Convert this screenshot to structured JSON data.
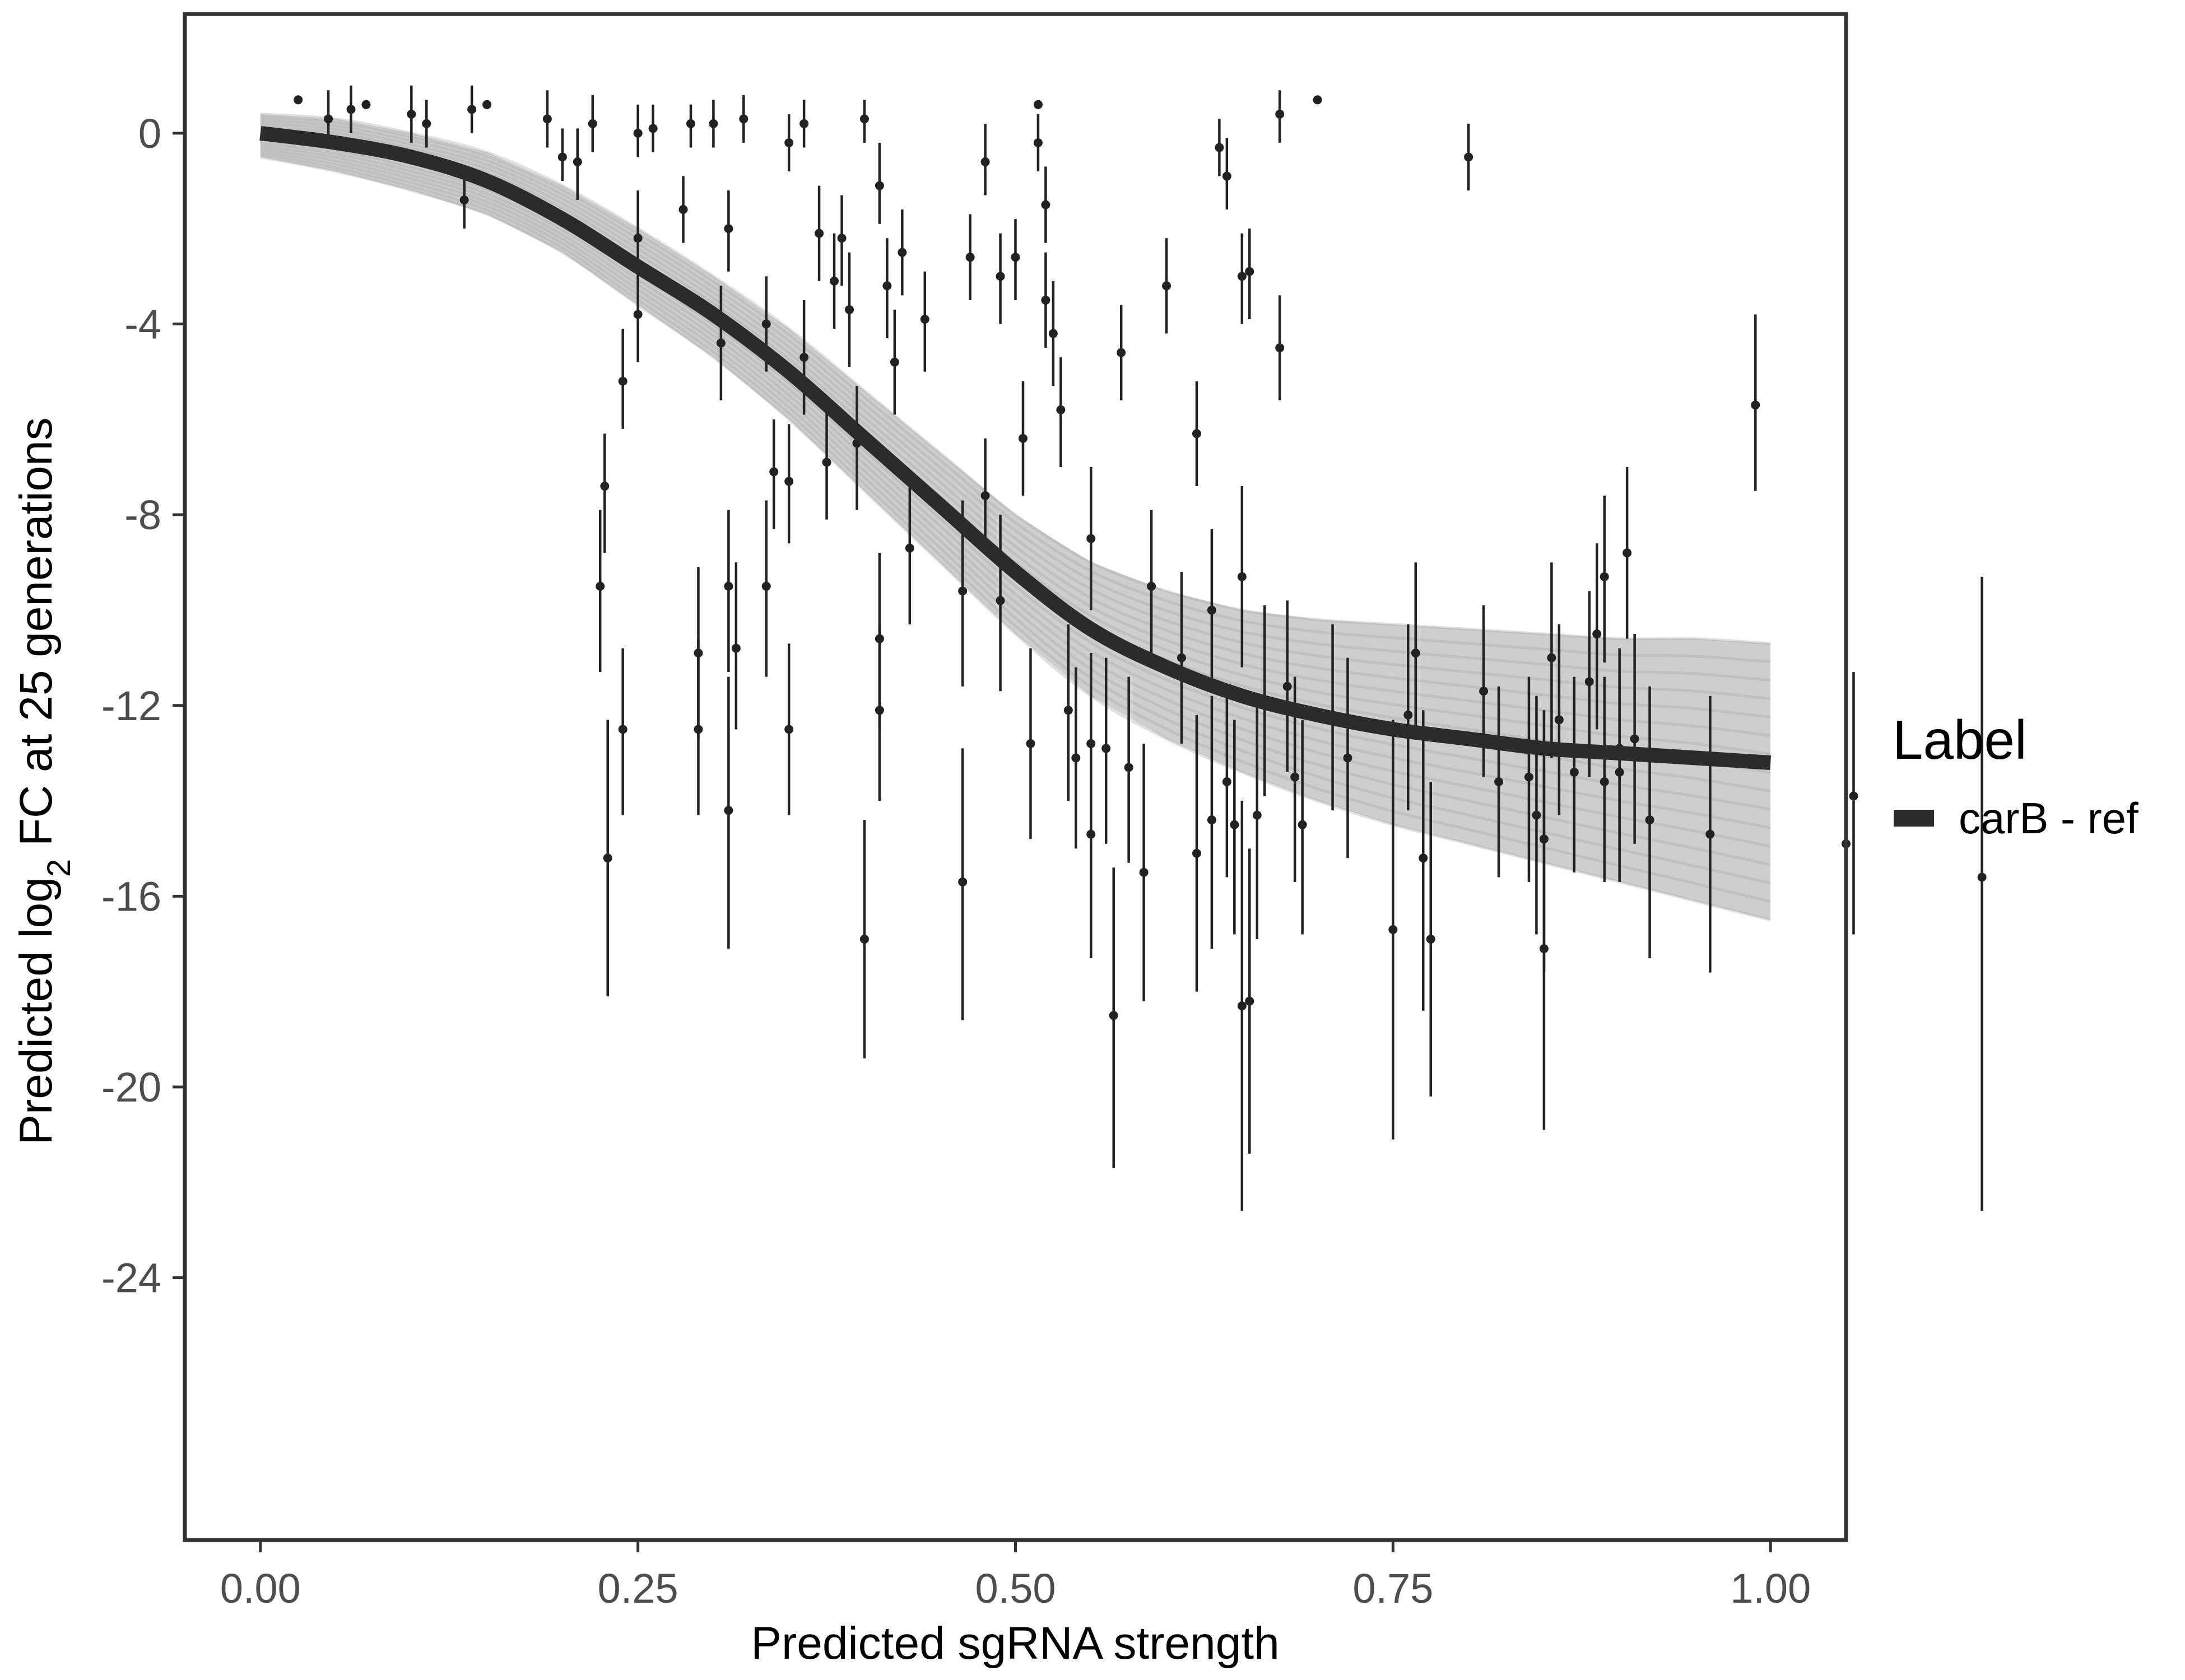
{
  "chart_data": {
    "type": "scatter",
    "xlabel": "Predicted sgRNA strength",
    "ylabel": {
      "prefix": "Predicted  log",
      "subscript": "2",
      "suffix": " FC at 25 generations"
    },
    "xlim": [
      -0.05,
      1.05
    ],
    "ylim": [
      -29.5,
      2.5
    ],
    "x_ticks": [
      0.0,
      0.25,
      0.5,
      0.75,
      1.0
    ],
    "x_tick_labels": [
      "0.00",
      "0.25",
      "0.50",
      "0.75",
      "1.00"
    ],
    "y_ticks": [
      0,
      -4,
      -8,
      -12,
      -16,
      -20,
      -24
    ],
    "y_tick_labels": [
      "0",
      "-4",
      "-8",
      "-12",
      "-16",
      "-20",
      "-24"
    ],
    "grid": false,
    "legend": {
      "title": "Label",
      "placement": "right",
      "entries": [
        "carB - ref"
      ]
    },
    "colors": {
      "points": "#222222",
      "fit": "#2b2b2b",
      "posterior": "#a6a6a6",
      "frame": "#333333"
    },
    "fit_curve": {
      "name": "carB - ref",
      "x": [
        0.0,
        0.05,
        0.1,
        0.15,
        0.2,
        0.25,
        0.3,
        0.35,
        0.4,
        0.45,
        0.5,
        0.55,
        0.6,
        0.65,
        0.7,
        0.75,
        0.8,
        0.85,
        0.9,
        0.95,
        1.0
      ],
      "y": [
        0.0,
        -0.2,
        -0.5,
        -1.0,
        -1.8,
        -2.8,
        -3.8,
        -5.0,
        -6.4,
        -7.8,
        -9.2,
        -10.4,
        -11.2,
        -11.8,
        -12.2,
        -12.5,
        -12.7,
        -12.9,
        -13.0,
        -13.1,
        -13.2
      ],
      "band_upper": [
        0.4,
        0.3,
        0.0,
        -0.4,
        -1.1,
        -2.0,
        -3.0,
        -4.1,
        -5.4,
        -6.7,
        -8.0,
        -9.0,
        -9.6,
        -10.0,
        -10.2,
        -10.3,
        -10.4,
        -10.5,
        -10.6,
        -10.6,
        -10.7
      ],
      "band_lower": [
        -0.5,
        -0.8,
        -1.2,
        -1.7,
        -2.5,
        -3.6,
        -4.7,
        -6.0,
        -7.5,
        -9.0,
        -10.5,
        -11.8,
        -12.7,
        -13.4,
        -14.0,
        -14.5,
        -14.9,
        -15.3,
        -15.7,
        -16.1,
        -16.5
      ]
    },
    "points": [
      {
        "x": 0.025,
        "y": 0.7
      },
      {
        "x": 0.045,
        "y": 0.3,
        "lo": -0.3,
        "hi": 0.9
      },
      {
        "x": 0.06,
        "y": 0.5,
        "lo": 0.0,
        "hi": 1.0
      },
      {
        "x": 0.07,
        "y": 0.6
      },
      {
        "x": 0.1,
        "y": 0.4,
        "lo": -0.2,
        "hi": 1.0
      },
      {
        "x": 0.11,
        "y": 0.2,
        "lo": -0.3,
        "hi": 0.7
      },
      {
        "x": 0.135,
        "y": -1.4,
        "lo": -2.0,
        "hi": -0.7
      },
      {
        "x": 0.14,
        "y": 0.5,
        "lo": 0.0,
        "hi": 1.0
      },
      {
        "x": 0.15,
        "y": 0.6
      },
      {
        "x": 0.19,
        "y": 0.3,
        "lo": -0.3,
        "hi": 0.9
      },
      {
        "x": 0.2,
        "y": -0.5,
        "lo": -1.0,
        "hi": 0.1
      },
      {
        "x": 0.21,
        "y": -0.6,
        "lo": -1.4,
        "hi": 0.1
      },
      {
        "x": 0.22,
        "y": 0.2,
        "lo": -0.4,
        "hi": 0.8
      },
      {
        "x": 0.225,
        "y": -9.5,
        "lo": -11.3,
        "hi": -7.9
      },
      {
        "x": 0.228,
        "y": -7.4,
        "lo": -8.8,
        "hi": -6.3
      },
      {
        "x": 0.23,
        "y": -15.2,
        "lo": -18.1,
        "hi": -12.3
      },
      {
        "x": 0.24,
        "y": -5.2,
        "lo": -6.2,
        "hi": -4.1
      },
      {
        "x": 0.24,
        "y": -12.5,
        "lo": -14.3,
        "hi": -10.8
      },
      {
        "x": 0.25,
        "y": -2.2,
        "lo": -3.2,
        "hi": -1.2
      },
      {
        "x": 0.25,
        "y": -3.8,
        "lo": -4.8,
        "hi": -2.8
      },
      {
        "x": 0.25,
        "y": 0.0,
        "lo": -0.5,
        "hi": 0.6
      },
      {
        "x": 0.26,
        "y": 0.1,
        "lo": -0.4,
        "hi": 0.6
      },
      {
        "x": 0.28,
        "y": -1.6,
        "lo": -2.3,
        "hi": -0.9
      },
      {
        "x": 0.285,
        "y": 0.2,
        "lo": -0.3,
        "hi": 0.6
      },
      {
        "x": 0.29,
        "y": -10.9,
        "lo": -12.7,
        "hi": -9.1
      },
      {
        "x": 0.29,
        "y": -12.5,
        "lo": -14.3,
        "hi": -10.6
      },
      {
        "x": 0.3,
        "y": 0.2,
        "lo": -0.3,
        "hi": 0.7
      },
      {
        "x": 0.305,
        "y": -4.4,
        "lo": -5.6,
        "hi": -3.2
      },
      {
        "x": 0.31,
        "y": -9.5,
        "lo": -11.3,
        "hi": -7.9
      },
      {
        "x": 0.31,
        "y": -14.2,
        "lo": -17.1,
        "hi": -11.4
      },
      {
        "x": 0.31,
        "y": -2.0,
        "lo": -2.9,
        "hi": -1.2
      },
      {
        "x": 0.315,
        "y": -10.8,
        "lo": -12.5,
        "hi": -9.0
      },
      {
        "x": 0.32,
        "y": 0.3,
        "lo": -0.2,
        "hi": 0.8
      },
      {
        "x": 0.335,
        "y": -9.5,
        "lo": -11.4,
        "hi": -7.7
      },
      {
        "x": 0.335,
        "y": -4.0,
        "lo": -5.0,
        "hi": -3.0
      },
      {
        "x": 0.34,
        "y": -7.1,
        "lo": -8.3,
        "hi": -6.0
      },
      {
        "x": 0.35,
        "y": -12.5,
        "lo": -14.3,
        "hi": -10.7
      },
      {
        "x": 0.35,
        "y": -7.3,
        "lo": -8.6,
        "hi": -6.1
      },
      {
        "x": 0.35,
        "y": -0.2,
        "lo": -0.8,
        "hi": 0.4
      },
      {
        "x": 0.36,
        "y": -4.7,
        "lo": -5.9,
        "hi": -3.5
      },
      {
        "x": 0.36,
        "y": 0.2,
        "lo": -0.3,
        "hi": 0.7
      },
      {
        "x": 0.37,
        "y": -2.1,
        "lo": -3.1,
        "hi": -1.1
      },
      {
        "x": 0.375,
        "y": -6.9,
        "lo": -8.1,
        "hi": -5.8
      },
      {
        "x": 0.38,
        "y": -3.1,
        "lo": -4.1,
        "hi": -2.1
      },
      {
        "x": 0.385,
        "y": -2.2,
        "lo": -3.2,
        "hi": -1.3
      },
      {
        "x": 0.39,
        "y": -3.7,
        "lo": -4.9,
        "hi": -2.5
      },
      {
        "x": 0.395,
        "y": -6.5,
        "lo": -7.9,
        "hi": -5.3
      },
      {
        "x": 0.4,
        "y": -16.9,
        "lo": -19.4,
        "hi": -14.4
      },
      {
        "x": 0.4,
        "y": 0.3,
        "lo": -0.2,
        "hi": 0.7
      },
      {
        "x": 0.41,
        "y": -10.6,
        "lo": -12.5,
        "hi": -8.8
      },
      {
        "x": 0.41,
        "y": -12.1,
        "lo": -14.0,
        "hi": -10.3
      },
      {
        "x": 0.41,
        "y": -1.1,
        "lo": -1.9,
        "hi": -0.2
      },
      {
        "x": 0.415,
        "y": -3.2,
        "lo": -4.3,
        "hi": -2.2
      },
      {
        "x": 0.42,
        "y": -4.8,
        "lo": -5.9,
        "hi": -3.7
      },
      {
        "x": 0.425,
        "y": -2.5,
        "lo": -3.4,
        "hi": -1.6
      },
      {
        "x": 0.43,
        "y": -8.7,
        "lo": -10.3,
        "hi": -7.2
      },
      {
        "x": 0.44,
        "y": -3.9,
        "lo": -5.0,
        "hi": -2.9
      },
      {
        "x": 0.465,
        "y": -9.6,
        "lo": -11.6,
        "hi": -7.7
      },
      {
        "x": 0.465,
        "y": -15.7,
        "lo": -18.6,
        "hi": -12.9
      },
      {
        "x": 0.47,
        "y": -2.6,
        "lo": -3.5,
        "hi": -1.7
      },
      {
        "x": 0.48,
        "y": -0.6,
        "lo": -1.3,
        "hi": 0.2
      },
      {
        "x": 0.48,
        "y": -7.6,
        "lo": -8.8,
        "hi": -6.4
      },
      {
        "x": 0.49,
        "y": -3.0,
        "lo": -4.0,
        "hi": -2.1
      },
      {
        "x": 0.49,
        "y": -9.8,
        "lo": -11.7,
        "hi": -8.0
      },
      {
        "x": 0.5,
        "y": -2.6,
        "lo": -3.5,
        "hi": -1.8
      },
      {
        "x": 0.505,
        "y": -6.4,
        "lo": -7.6,
        "hi": -5.2
      },
      {
        "x": 0.51,
        "y": -12.8,
        "lo": -14.8,
        "hi": -10.8
      },
      {
        "x": 0.515,
        "y": -0.2,
        "lo": -0.8,
        "hi": 0.4
      },
      {
        "x": 0.515,
        "y": 0.6
      },
      {
        "x": 0.52,
        "y": -3.5,
        "lo": -4.5,
        "hi": -2.5
      },
      {
        "x": 0.52,
        "y": -1.5,
        "lo": -2.3,
        "hi": -0.7
      },
      {
        "x": 0.525,
        "y": -4.2,
        "lo": -5.3,
        "hi": -3.1
      },
      {
        "x": 0.53,
        "y": -5.8,
        "lo": -7.0,
        "hi": -4.7
      },
      {
        "x": 0.535,
        "y": -12.1,
        "lo": -14.0,
        "hi": -10.3
      },
      {
        "x": 0.54,
        "y": -13.1,
        "lo": -15.0,
        "hi": -11.2
      },
      {
        "x": 0.55,
        "y": -8.5,
        "lo": -10.0,
        "hi": -7.0
      },
      {
        "x": 0.55,
        "y": -12.8,
        "lo": -14.7,
        "hi": -10.9
      },
      {
        "x": 0.55,
        "y": -14.7,
        "lo": -17.3,
        "hi": -12.1
      },
      {
        "x": 0.56,
        "y": -12.9,
        "lo": -14.9,
        "hi": -11.0
      },
      {
        "x": 0.565,
        "y": -18.5,
        "lo": -21.7,
        "hi": -15.4
      },
      {
        "x": 0.57,
        "y": -4.6,
        "lo": -5.6,
        "hi": -3.6
      },
      {
        "x": 0.575,
        "y": -13.3,
        "lo": -15.3,
        "hi": -11.4
      },
      {
        "x": 0.585,
        "y": -15.5,
        "lo": -18.2,
        "hi": -12.8
      },
      {
        "x": 0.59,
        "y": -9.5,
        "lo": -11.1,
        "hi": -7.9
      },
      {
        "x": 0.6,
        "y": -3.2,
        "lo": -4.2,
        "hi": -2.2
      },
      {
        "x": 0.61,
        "y": -11.0,
        "lo": -12.8,
        "hi": -9.2
      },
      {
        "x": 0.62,
        "y": -6.3,
        "lo": -7.4,
        "hi": -5.2
      },
      {
        "x": 0.62,
        "y": -15.1,
        "lo": -18.0,
        "hi": -12.2
      },
      {
        "x": 0.63,
        "y": -10.0,
        "lo": -11.7,
        "hi": -8.3
      },
      {
        "x": 0.63,
        "y": -14.4,
        "lo": -17.1,
        "hi": -11.8
      },
      {
        "x": 0.635,
        "y": -0.3,
        "lo": -0.9,
        "hi": 0.3
      },
      {
        "x": 0.64,
        "y": -0.9,
        "lo": -1.6,
        "hi": -0.1
      },
      {
        "x": 0.64,
        "y": -13.6,
        "lo": -15.6,
        "hi": -11.6
      },
      {
        "x": 0.645,
        "y": -14.5,
        "lo": -16.8,
        "hi": -12.3
      },
      {
        "x": 0.65,
        "y": -3.0,
        "lo": -4.0,
        "hi": -2.1
      },
      {
        "x": 0.65,
        "y": -9.3,
        "lo": -11.2,
        "hi": -7.4
      },
      {
        "x": 0.65,
        "y": -18.3,
        "lo": -22.6,
        "hi": -14.0
      },
      {
        "x": 0.655,
        "y": -2.9,
        "lo": -3.9,
        "hi": -2.0
      },
      {
        "x": 0.655,
        "y": -18.2,
        "lo": -21.4,
        "hi": -15.0
      },
      {
        "x": 0.66,
        "y": -14.3,
        "lo": -16.9,
        "hi": -11.8
      },
      {
        "x": 0.665,
        "y": -11.9,
        "lo": -13.9,
        "hi": -9.9
      },
      {
        "x": 0.675,
        "y": 0.4,
        "lo": -0.2,
        "hi": 0.9
      },
      {
        "x": 0.675,
        "y": -4.5,
        "lo": -5.6,
        "hi": -3.4
      },
      {
        "x": 0.68,
        "y": -11.6,
        "lo": -13.4,
        "hi": -9.8
      },
      {
        "x": 0.685,
        "y": -13.5,
        "lo": -15.7,
        "hi": -11.4
      },
      {
        "x": 0.69,
        "y": -14.5,
        "lo": -16.8,
        "hi": -12.3
      },
      {
        "x": 0.7,
        "y": 0.7
      },
      {
        "x": 0.71,
        "y": -12.2,
        "lo": -14.2,
        "hi": -10.3
      },
      {
        "x": 0.72,
        "y": -13.1,
        "lo": -15.2,
        "hi": -11.0
      },
      {
        "x": 0.75,
        "y": -16.7,
        "lo": -21.1,
        "hi": -12.3
      },
      {
        "x": 0.76,
        "y": -12.2,
        "lo": -14.2,
        "hi": -10.3
      },
      {
        "x": 0.765,
        "y": -10.9,
        "lo": -12.7,
        "hi": -9.0
      },
      {
        "x": 0.77,
        "y": -15.2,
        "lo": -18.4,
        "hi": -12.1
      },
      {
        "x": 0.775,
        "y": -16.9,
        "lo": -20.2,
        "hi": -13.6
      },
      {
        "x": 0.8,
        "y": -0.5,
        "lo": -1.2,
        "hi": 0.2
      },
      {
        "x": 0.81,
        "y": -11.7,
        "lo": -13.5,
        "hi": -9.9
      },
      {
        "x": 0.82,
        "y": -13.6,
        "lo": -15.6,
        "hi": -11.6
      },
      {
        "x": 0.84,
        "y": -13.5,
        "lo": -15.7,
        "hi": -11.4
      },
      {
        "x": 0.845,
        "y": -14.3,
        "lo": -16.8,
        "hi": -11.8
      },
      {
        "x": 0.85,
        "y": -14.8,
        "lo": -17.6,
        "hi": -12.1
      },
      {
        "x": 0.85,
        "y": -17.1,
        "lo": -20.9,
        "hi": -13.3
      },
      {
        "x": 0.855,
        "y": -11.0,
        "lo": -13.1,
        "hi": -9.0
      },
      {
        "x": 0.86,
        "y": -12.3,
        "lo": -14.3,
        "hi": -10.3
      },
      {
        "x": 0.87,
        "y": -13.4,
        "lo": -15.5,
        "hi": -11.4
      },
      {
        "x": 0.88,
        "y": -11.5,
        "lo": -13.5,
        "hi": -9.6
      },
      {
        "x": 0.885,
        "y": -10.5,
        "lo": -12.5,
        "hi": -8.6
      },
      {
        "x": 0.89,
        "y": -13.6,
        "lo": -15.7,
        "hi": -11.4
      },
      {
        "x": 0.89,
        "y": -9.3,
        "lo": -11.1,
        "hi": -7.6
      },
      {
        "x": 0.9,
        "y": -12.9,
        "lo": -15.1,
        "hi": -10.8
      },
      {
        "x": 0.9,
        "y": -13.4,
        "lo": -15.7,
        "hi": -11.3
      },
      {
        "x": 0.905,
        "y": -8.8,
        "lo": -10.6,
        "hi": -7.0
      },
      {
        "x": 0.91,
        "y": -12.7,
        "lo": -14.9,
        "hi": -10.5
      },
      {
        "x": 0.92,
        "y": -14.4,
        "lo": -17.3,
        "hi": -11.6
      },
      {
        "x": 0.96,
        "y": -14.7,
        "lo": -17.6,
        "hi": -11.8
      },
      {
        "x": 0.99,
        "y": -5.7,
        "lo": -7.5,
        "hi": -3.8
      },
      {
        "x": 1.05,
        "y": -14.9,
        "lo": -18.8,
        "hi": -11.5
      },
      {
        "x": 1.055,
        "y": -13.9,
        "lo": -16.8,
        "hi": -11.3
      },
      {
        "x": 1.14,
        "y": -15.6,
        "lo": -22.6,
        "hi": -9.3
      }
    ]
  }
}
